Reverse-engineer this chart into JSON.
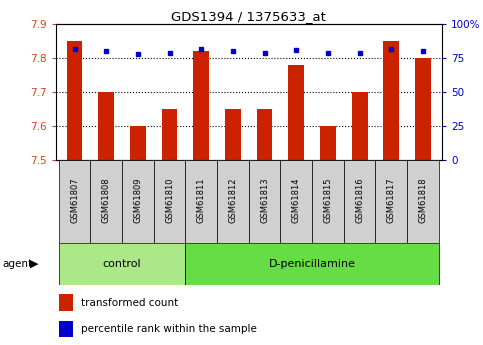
{
  "title": "GDS1394 / 1375633_at",
  "categories": [
    "GSM61807",
    "GSM61808",
    "GSM61809",
    "GSM61810",
    "GSM61811",
    "GSM61812",
    "GSM61813",
    "GSM61814",
    "GSM61815",
    "GSM61816",
    "GSM61817",
    "GSM61818"
  ],
  "red_values": [
    7.85,
    7.7,
    7.6,
    7.65,
    7.82,
    7.65,
    7.65,
    7.78,
    7.6,
    7.7,
    7.85,
    7.8
  ],
  "blue_values": [
    82,
    80,
    78,
    79,
    82,
    80,
    79,
    81,
    79,
    79,
    82,
    80
  ],
  "ylim_left": [
    7.5,
    7.9
  ],
  "ylim_right": [
    0,
    100
  ],
  "yticks_left": [
    7.5,
    7.6,
    7.7,
    7.8,
    7.9
  ],
  "yticks_right": [
    0,
    25,
    50,
    75,
    100
  ],
  "ytick_labels_right": [
    "0",
    "25",
    "50",
    "75",
    "100%"
  ],
  "hlines": [
    7.6,
    7.7,
    7.8
  ],
  "bar_color": "#cc2200",
  "dot_color": "#0000cc",
  "control_color": "#aae888",
  "dpenicillamine_color": "#66dd44",
  "tick_label_color_left": "#cc4422",
  "tick_label_color_right": "#0000cc",
  "n_control": 4,
  "n_dpenicillamine": 8,
  "control_label": "control",
  "dpenicillamine_label": "D-penicillamine",
  "agent_label": "agent",
  "legend_red": "transformed count",
  "legend_blue": "percentile rank within the sample",
  "bar_width": 0.5,
  "sample_box_color": "#d0d0d0",
  "spine_color": "#000000"
}
